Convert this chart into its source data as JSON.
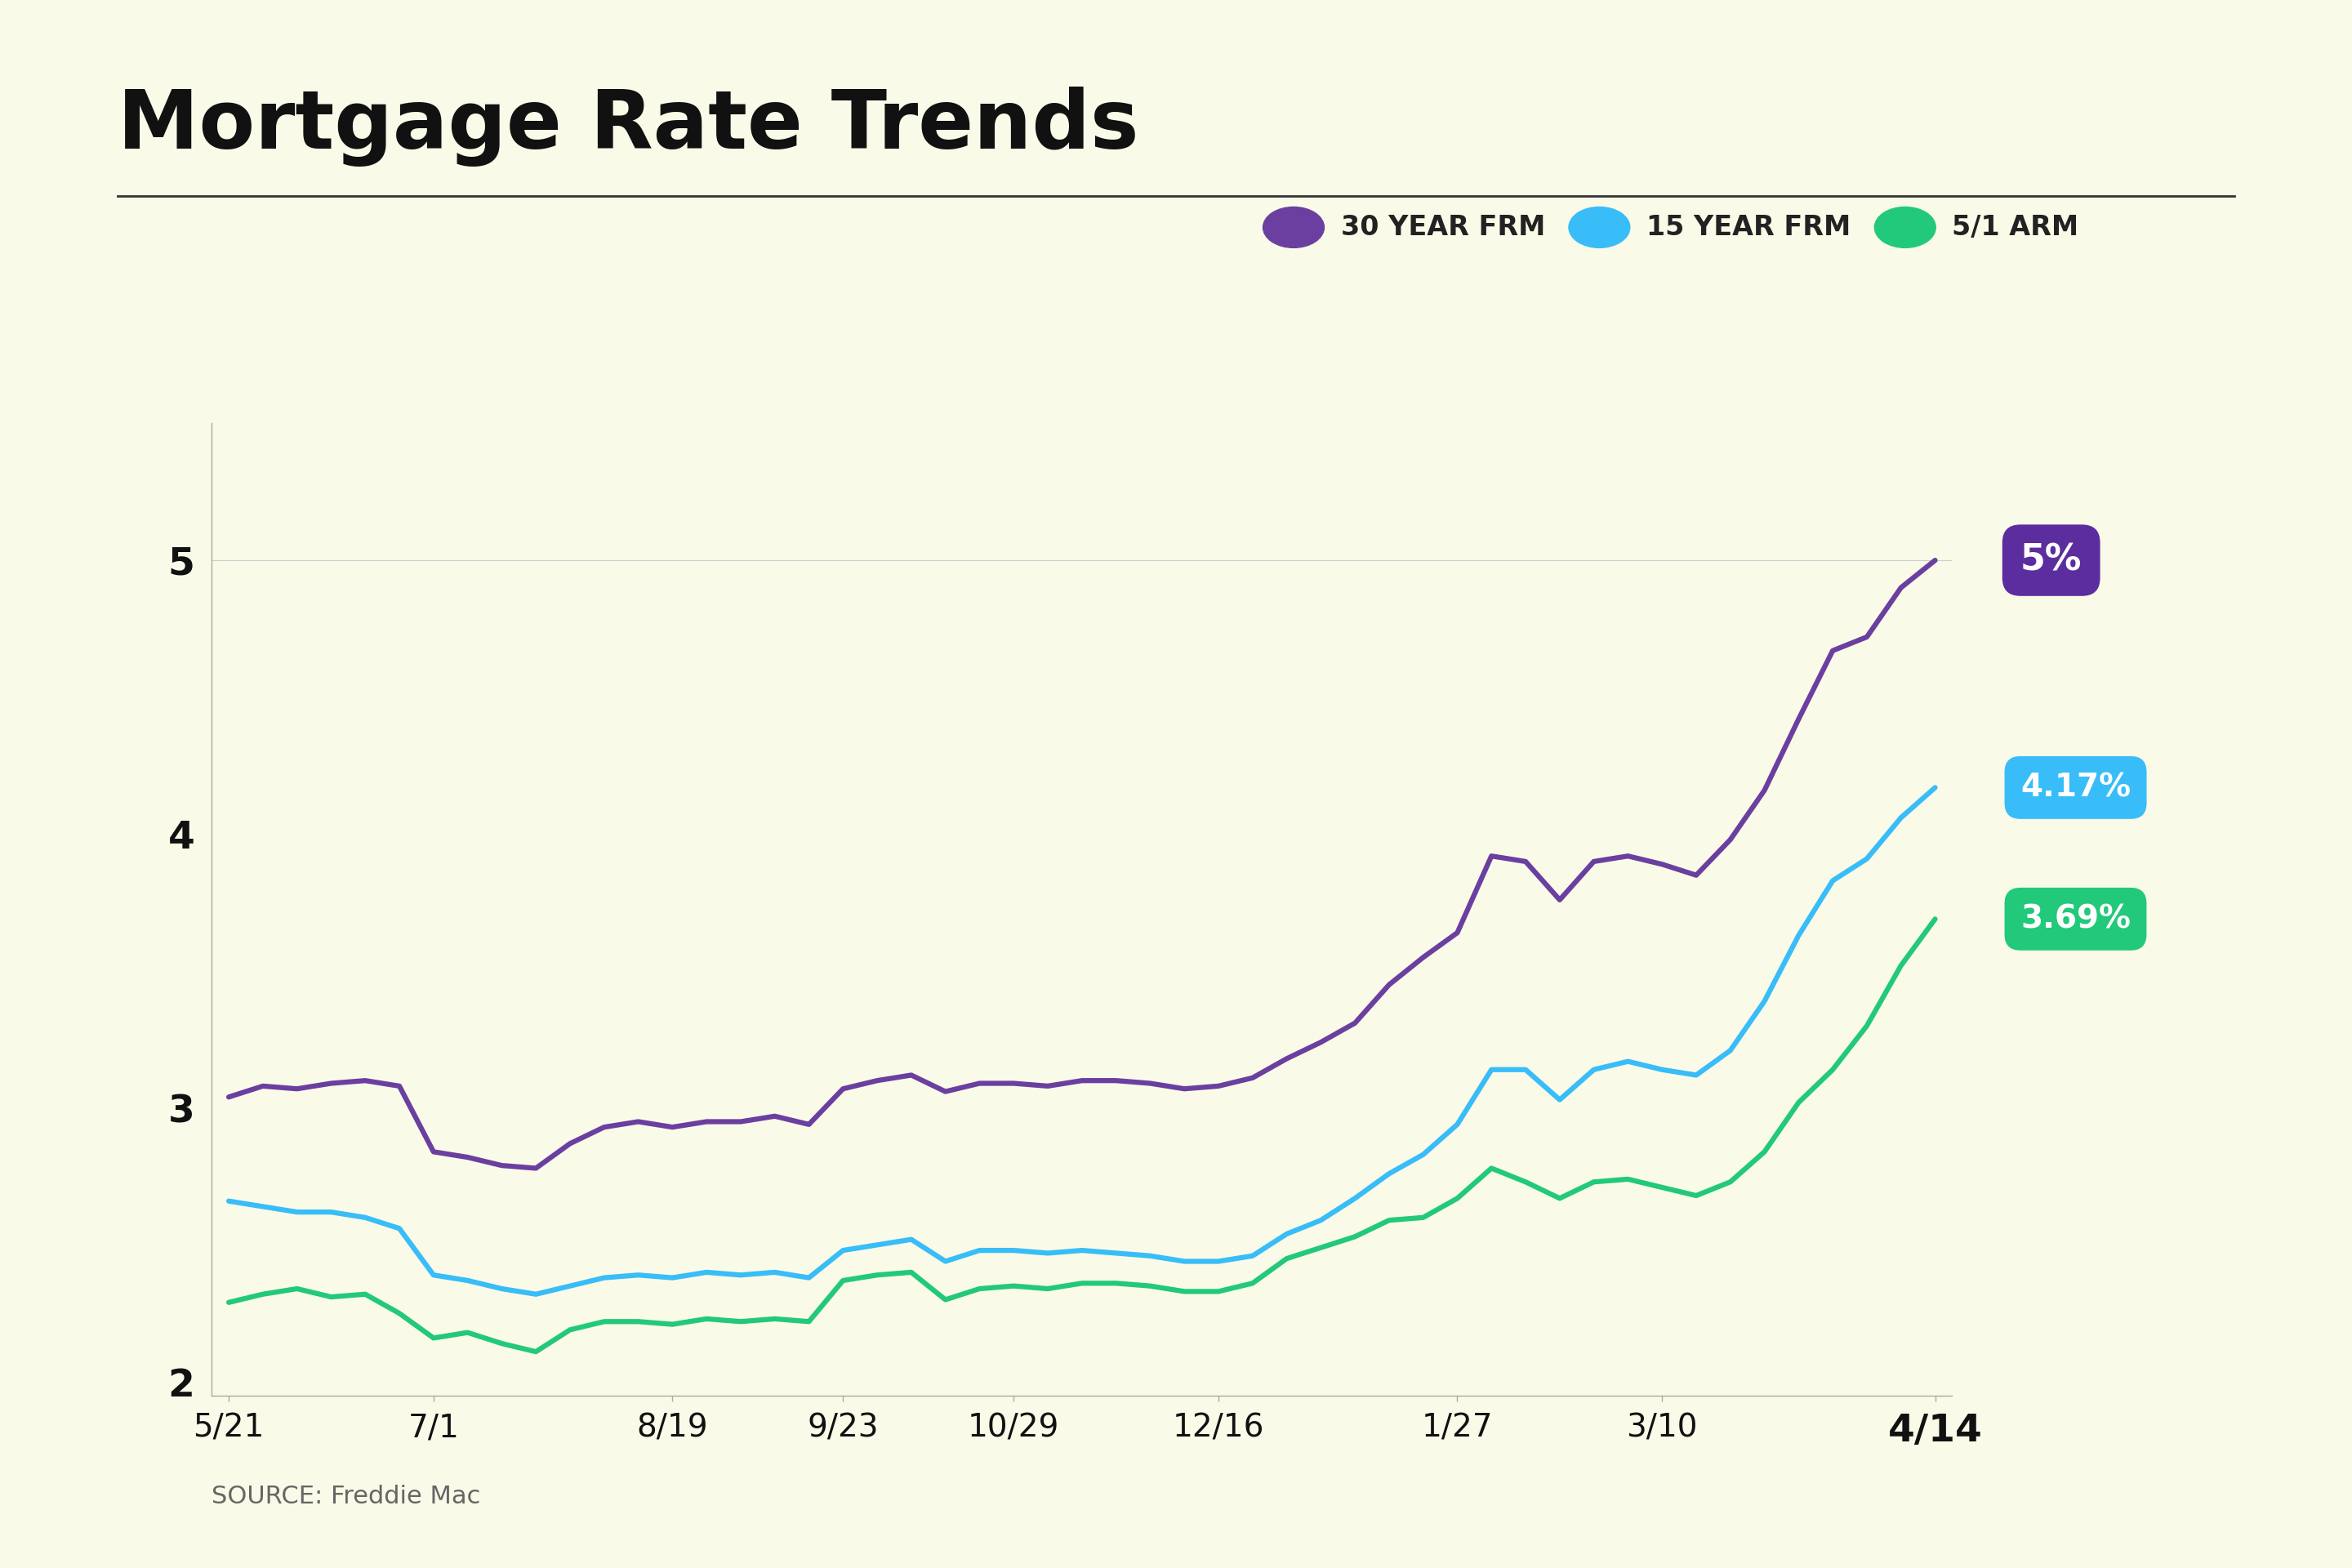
{
  "title": "Mortgage Rate Trends",
  "source": "SOURCE: Freddie Mac",
  "background_color": "#FAFAE8",
  "title_color": "#111111",
  "yticks": [
    2,
    3,
    4,
    5
  ],
  "ylim": [
    1.95,
    5.5
  ],
  "xtick_labels": [
    "5/21",
    "7/1",
    "8/19",
    "9/23",
    "10/29",
    "12/16",
    "1/27",
    "3/10",
    "4/14"
  ],
  "series": {
    "30yr": {
      "label": "30 YEAR FRM",
      "color": "#6B3FA0",
      "end_label": "5%",
      "end_label_bg": "#5B2D9E",
      "end_label_color": "#ffffff"
    },
    "15yr": {
      "label": "15 YEAR FRM",
      "color": "#38BDF8",
      "end_label": "4.17%",
      "end_label_bg": "#38BDF8",
      "end_label_color": "#ffffff"
    },
    "arm": {
      "label": "5/1 ARM",
      "color": "#22C97A",
      "end_label": "3.69%",
      "end_label_bg": "#22C97A",
      "end_label_color": "#ffffff"
    }
  },
  "data_30yr": [
    3.04,
    3.08,
    3.07,
    3.09,
    3.1,
    3.08,
    2.84,
    2.82,
    2.79,
    2.78,
    2.87,
    2.93,
    2.95,
    2.93,
    2.95,
    2.95,
    2.97,
    2.94,
    3.07,
    3.1,
    3.12,
    3.06,
    3.09,
    3.09,
    3.08,
    3.1,
    3.1,
    3.09,
    3.07,
    3.08,
    3.11,
    3.18,
    3.24,
    3.31,
    3.45,
    3.55,
    3.64,
    3.92,
    3.9,
    3.76,
    3.9,
    3.92,
    3.89,
    3.85,
    3.98,
    4.16,
    4.42,
    4.67,
    4.72,
    4.9,
    5.0
  ],
  "data_15yr": [
    2.66,
    2.64,
    2.62,
    2.62,
    2.6,
    2.56,
    2.39,
    2.37,
    2.34,
    2.32,
    2.35,
    2.38,
    2.39,
    2.38,
    2.4,
    2.39,
    2.4,
    2.38,
    2.48,
    2.5,
    2.52,
    2.44,
    2.48,
    2.48,
    2.47,
    2.48,
    2.47,
    2.46,
    2.44,
    2.44,
    2.46,
    2.54,
    2.59,
    2.67,
    2.76,
    2.83,
    2.94,
    3.14,
    3.14,
    3.03,
    3.14,
    3.17,
    3.14,
    3.12,
    3.21,
    3.39,
    3.63,
    3.83,
    3.91,
    4.06,
    4.17
  ],
  "data_arm": [
    2.29,
    2.32,
    2.34,
    2.31,
    2.32,
    2.25,
    2.16,
    2.18,
    2.14,
    2.11,
    2.19,
    2.22,
    2.22,
    2.21,
    2.23,
    2.22,
    2.23,
    2.22,
    2.37,
    2.39,
    2.4,
    2.3,
    2.34,
    2.35,
    2.34,
    2.36,
    2.36,
    2.35,
    2.33,
    2.33,
    2.36,
    2.45,
    2.49,
    2.53,
    2.59,
    2.6,
    2.67,
    2.78,
    2.73,
    2.67,
    2.73,
    2.74,
    2.71,
    2.68,
    2.73,
    2.84,
    3.02,
    3.14,
    3.3,
    3.52,
    3.69
  ],
  "xtick_pos": [
    0,
    6,
    13,
    18,
    23,
    29,
    36,
    42,
    50
  ],
  "legend_colors": [
    "#6B3FA0",
    "#38BDF8",
    "#22C97A"
  ],
  "legend_labels": [
    "30 YEAR FRM",
    "15 YEAR FRM",
    "5/1 ARM"
  ]
}
